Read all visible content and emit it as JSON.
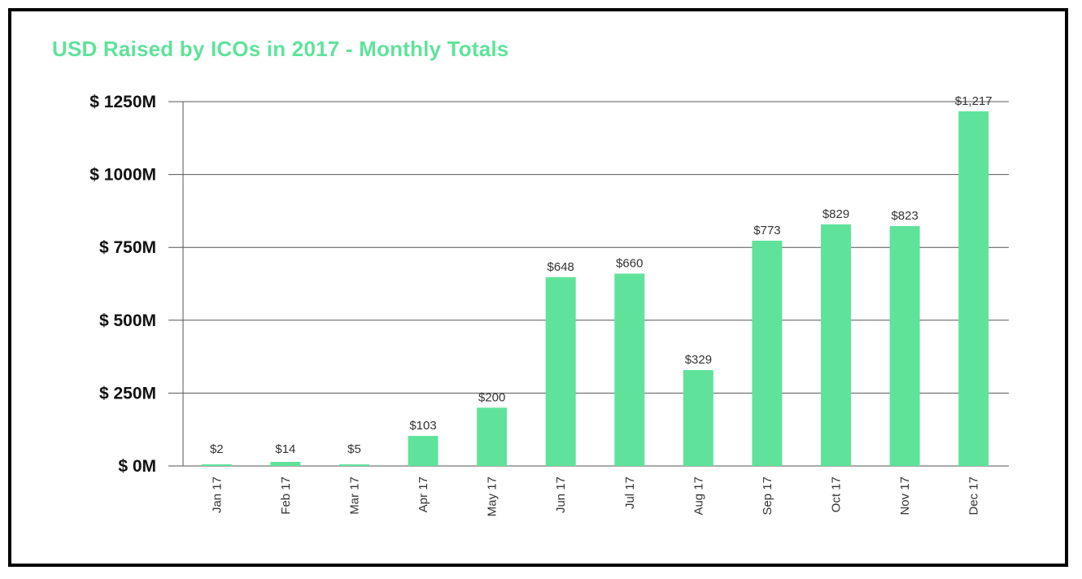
{
  "chart_data": {
    "type": "bar",
    "title": "USD Raised by ICOs in 2017 - Monthly Totals",
    "xlabel": "",
    "ylabel": "",
    "categories": [
      "Jan 17",
      "Feb 17",
      "Mar 17",
      "Apr 17",
      "May 17",
      "Jun 17",
      "Jul 17",
      "Aug 17",
      "Sep 17",
      "Oct 17",
      "Nov 17",
      "Dec 17"
    ],
    "values": [
      2,
      14,
      5,
      103,
      200,
      648,
      660,
      329,
      773,
      829,
      823,
      1217
    ],
    "data_labels": [
      "$2",
      "$14",
      "$5",
      "$103",
      "$200",
      "$648",
      "$660",
      "$329",
      "$773",
      "$829",
      "$823",
      "$1,217"
    ],
    "ylim": [
      0,
      1250
    ],
    "yticks": [
      0,
      250,
      500,
      750,
      1000,
      1250
    ],
    "ytick_labels": [
      "$ 0M",
      "$ 250M",
      "$ 500M",
      "$ 750M",
      "$ 1000M",
      "$ 1250M"
    ],
    "grid": true,
    "bar_color": "#5fe39a",
    "title_color": "#5fe39a"
  }
}
